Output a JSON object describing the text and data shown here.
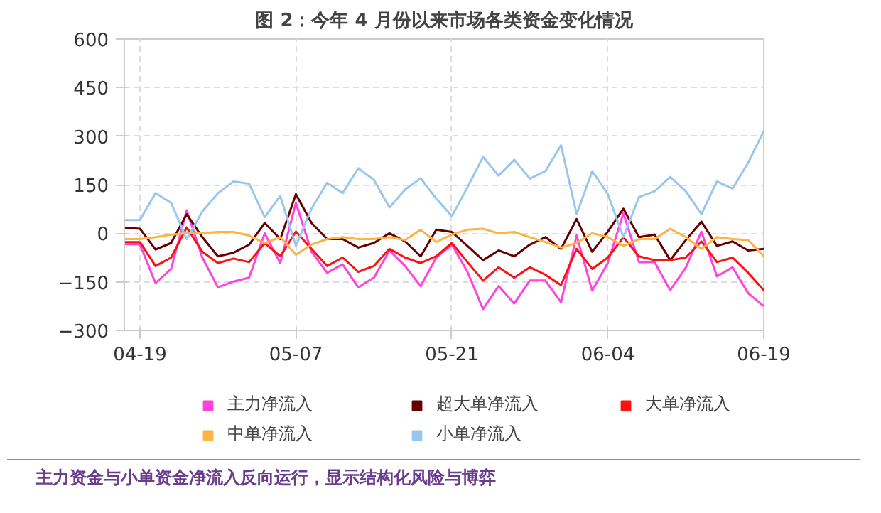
{
  "chart_data": {
    "type": "line",
    "title": "图 2：今年 4 月份以来市场各类资金变化情况",
    "categories": [
      null,
      "04-19",
      null,
      null,
      null,
      null,
      null,
      null,
      null,
      null,
      null,
      "05-07",
      null,
      null,
      null,
      null,
      null,
      null,
      null,
      null,
      null,
      "05-21",
      null,
      null,
      null,
      null,
      null,
      null,
      null,
      null,
      null,
      "06-04",
      null,
      null,
      null,
      null,
      null,
      null,
      null,
      null,
      null,
      "06-19"
    ],
    "ylim": [
      -300,
      600
    ],
    "yticks": [
      -300,
      -150,
      0,
      150,
      300,
      450,
      600
    ],
    "grid": true,
    "legend": "bottom",
    "line_style": "solid",
    "marker": "none",
    "series": [
      {
        "name": "主力净流入",
        "color": "#ff44dd",
        "values": [
          -34,
          -34,
          -154,
          -110,
          71,
          -75,
          -167,
          -149,
          -137,
          0,
          -92,
          94,
          -57,
          -122,
          -96,
          -167,
          -137,
          -53,
          -101,
          -163,
          -75,
          -35,
          -119,
          -234,
          -163,
          -217,
          -146,
          -146,
          -213,
          -7,
          -177,
          -92,
          62,
          -89,
          -89,
          -176,
          -106,
          5,
          -133,
          -105,
          -185,
          -225
        ]
      },
      {
        "name": "超大单净流入",
        "color": "#660000",
        "values": [
          18,
          14,
          -50,
          -30,
          59,
          -12,
          -71,
          -60,
          -35,
          32,
          -18,
          121,
          32,
          -18,
          -18,
          -44,
          -30,
          0,
          -25,
          -71,
          11,
          4,
          -39,
          -83,
          -53,
          -71,
          -35,
          -12,
          -48,
          44,
          -57,
          5,
          76,
          -12,
          -4,
          -83,
          -21,
          36,
          -39,
          -25,
          -53,
          -48
        ]
      },
      {
        "name": "大单净流入",
        "color": "#ff1010",
        "values": [
          -27,
          -27,
          -101,
          -75,
          18,
          -57,
          -92,
          -78,
          -89,
          -30,
          -71,
          5,
          -48,
          -101,
          -75,
          -119,
          -101,
          -48,
          -75,
          -92,
          -71,
          -30,
          -89,
          -146,
          -105,
          -137,
          -105,
          -128,
          -160,
          -48,
          -110,
          -75,
          -12,
          -71,
          -83,
          -83,
          -75,
          -25,
          -89,
          -75,
          -122,
          -176
        ]
      },
      {
        "name": "中单净流入",
        "color": "#ffb340",
        "values": [
          -18,
          -18,
          -12,
          -4,
          0,
          0,
          4,
          4,
          -7,
          -30,
          -12,
          -66,
          -35,
          -18,
          -12,
          -18,
          -18,
          -12,
          -21,
          11,
          -27,
          -4,
          11,
          14,
          0,
          4,
          -12,
          -27,
          -44,
          -30,
          0,
          -12,
          -39,
          -18,
          -18,
          14,
          -12,
          -48,
          -12,
          -18,
          -21,
          -71
        ]
      },
      {
        "name": "小单净流入",
        "color": "#99c6ee",
        "values": [
          41,
          41,
          124,
          94,
          -18,
          67,
          124,
          160,
          153,
          50,
          115,
          -39,
          76,
          156,
          124,
          201,
          165,
          80,
          135,
          170,
          107,
          53,
          142,
          236,
          178,
          227,
          169,
          192,
          272,
          59,
          192,
          121,
          -12,
          112,
          130,
          174,
          130,
          59,
          160,
          138,
          218,
          316
        ]
      }
    ],
    "annotations": [
      "主力资金与小单资金净流入反向运行，显示结构化风险与博弈"
    ]
  }
}
